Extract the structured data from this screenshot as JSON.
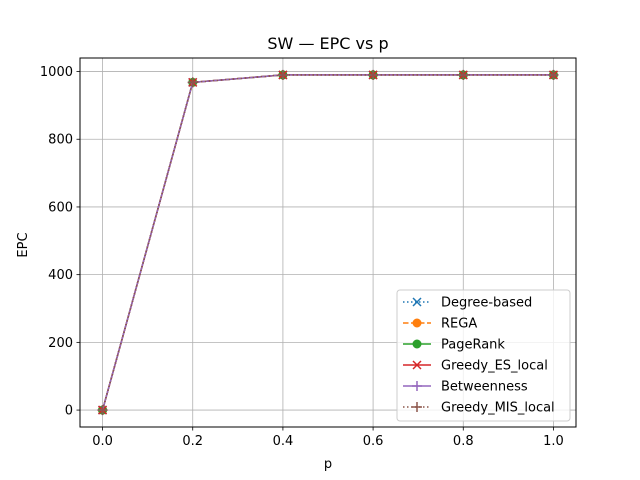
{
  "chart_data": {
    "type": "line",
    "title": "SW — EPC vs p",
    "xlabel": "p",
    "ylabel": "EPC",
    "xlim": [
      -0.05,
      1.05
    ],
    "ylim": [
      -50,
      1040
    ],
    "xticks": [
      0.0,
      0.2,
      0.4,
      0.6,
      0.8,
      1.0
    ],
    "xtick_labels": [
      "0.0",
      "0.2",
      "0.4",
      "0.6",
      "0.8",
      "1.0"
    ],
    "yticks": [
      0,
      200,
      400,
      600,
      800,
      1000
    ],
    "ytick_labels": [
      "0",
      "200",
      "400",
      "600",
      "800",
      "1000"
    ],
    "grid": true,
    "legend_position": "lower-right",
    "x": [
      0.0,
      0.2,
      0.4,
      0.6,
      0.8,
      1.0
    ],
    "series": [
      {
        "name": "Degree-based",
        "values": [
          0,
          968,
          990,
          990,
          990,
          990
        ],
        "color": "#1f77b4",
        "linestyle": "dotted",
        "marker": "x"
      },
      {
        "name": "REGA",
        "values": [
          0,
          968,
          990,
          990,
          990,
          990
        ],
        "color": "#ff7f0e",
        "linestyle": "dashed",
        "marker": "circle"
      },
      {
        "name": "PageRank",
        "values": [
          0,
          968,
          990,
          990,
          990,
          990
        ],
        "color": "#2ca02c",
        "linestyle": "solid",
        "marker": "circle"
      },
      {
        "name": "Greedy_ES_local",
        "values": [
          0,
          968,
          990,
          990,
          990,
          990
        ],
        "color": "#d62728",
        "linestyle": "solid",
        "marker": "x"
      },
      {
        "name": "Betweenness",
        "values": [
          0,
          968,
          990,
          990,
          990,
          990
        ],
        "color": "#9467bd",
        "linestyle": "solid",
        "marker": "plus"
      },
      {
        "name": "Greedy_MIS_local",
        "values": [
          0,
          968,
          990,
          990,
          990,
          990
        ],
        "color": "#8c564b",
        "linestyle": "dotted",
        "marker": "plus"
      }
    ]
  }
}
